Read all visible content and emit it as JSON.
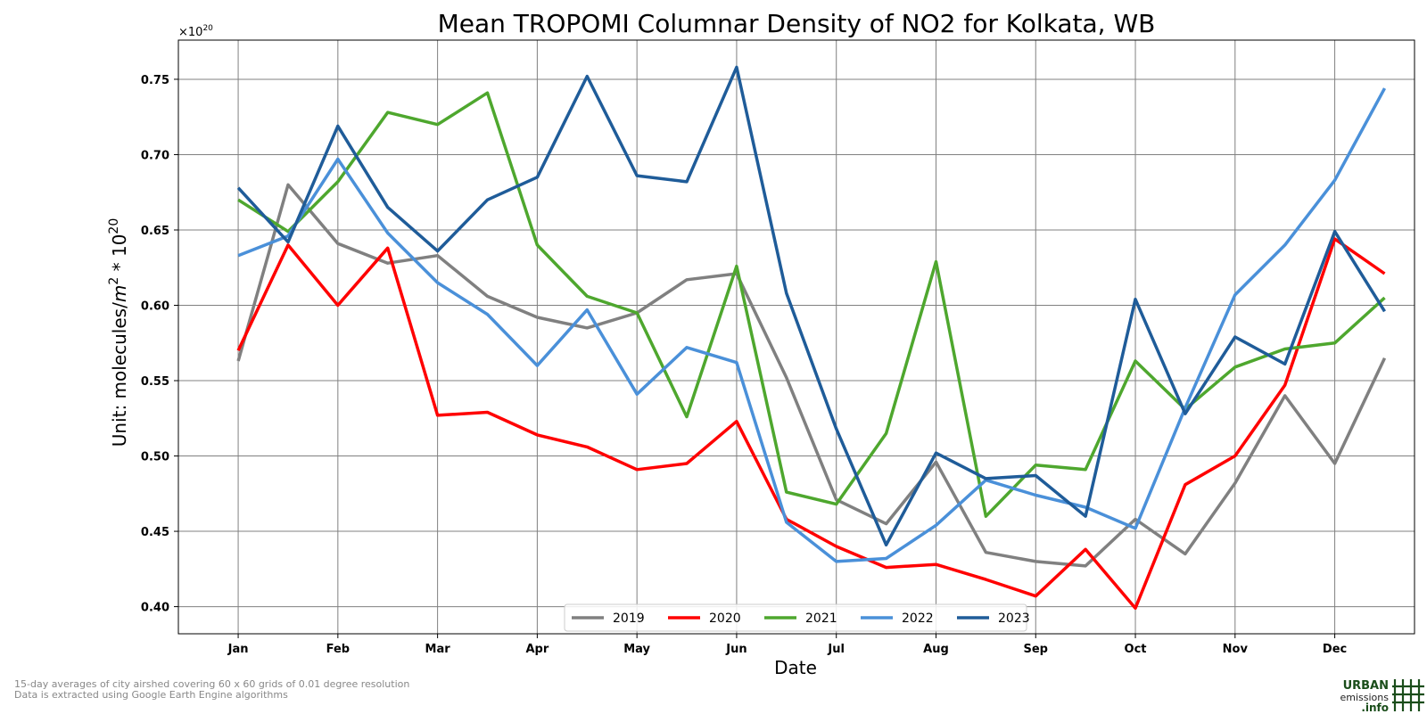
{
  "chart_data": {
    "type": "line",
    "title": "Mean TROPOMI Columnar Density of NO2 for Kolkata, WB",
    "xlabel": "Date",
    "ylabel": "Unit: molecules/m² * 10²⁰",
    "ylabel_base": "Unit: molecules/",
    "ylabel_unit_m": "m",
    "ylabel_exp_2": "2",
    "ylabel_mid": " * 10",
    "ylabel_exp_20": "20",
    "offset_text": "×10",
    "offset_exp": "20",
    "x_tick_labels": [
      "Jan",
      "Feb",
      "Mar",
      "Apr",
      "May",
      "Jun",
      "Jul",
      "Aug",
      "Sep",
      "Oct",
      "Nov",
      "Dec"
    ],
    "y_ticks": [
      0.4,
      0.45,
      0.5,
      0.55,
      0.6,
      0.65,
      0.7,
      0.75
    ],
    "y_tick_labels": [
      "0.40",
      "0.45",
      "0.50",
      "0.55",
      "0.60",
      "0.65",
      "0.70",
      "0.75"
    ],
    "ylim": [
      0.382,
      0.776
    ],
    "x_period_labels": [
      "Jan 1",
      "Jan 16",
      "Feb 1",
      "Feb 16",
      "Mar 1",
      "Mar 16",
      "Apr 1",
      "Apr 16",
      "May 1",
      "May 16",
      "Jun 1",
      "Jun 16",
      "Jul 1",
      "Jul 16",
      "Aug 1",
      "Aug 16",
      "Sep 1",
      "Sep 16",
      "Oct 1",
      "Oct 16",
      "Nov 1",
      "Nov 16",
      "Dec 1",
      "Dec 16"
    ],
    "grid": true,
    "legend_position": "bottom-center",
    "series": [
      {
        "name": "2019",
        "color": "#808080",
        "values": [
          0.563,
          0.68,
          0.641,
          0.628,
          0.633,
          0.606,
          0.592,
          0.585,
          0.595,
          0.617,
          0.621,
          0.552,
          0.471,
          0.455,
          0.496,
          0.436,
          0.43,
          0.427,
          0.458,
          0.435,
          0.482,
          0.54,
          0.495,
          0.565
        ]
      },
      {
        "name": "2020",
        "color": "#ff0000",
        "values": [
          0.57,
          0.64,
          0.6,
          0.638,
          0.527,
          0.529,
          0.514,
          0.506,
          0.491,
          0.495,
          0.523,
          0.458,
          0.44,
          0.426,
          0.428,
          0.418,
          0.407,
          0.438,
          0.399,
          0.481,
          0.5,
          0.547,
          0.644,
          0.621
        ]
      },
      {
        "name": "2021",
        "color": "#4ea72e",
        "values": [
          0.67,
          0.649,
          0.682,
          0.728,
          0.72,
          0.741,
          0.64,
          0.606,
          0.595,
          0.526,
          0.626,
          0.476,
          0.468,
          0.515,
          0.629,
          0.46,
          0.494,
          0.491,
          0.563,
          0.531,
          0.559,
          0.571,
          0.575,
          0.605
        ]
      },
      {
        "name": "2022",
        "color": "#4a90d9",
        "values": [
          0.633,
          0.646,
          0.697,
          0.648,
          0.615,
          0.594,
          0.56,
          0.597,
          0.541,
          0.572,
          0.562,
          0.456,
          0.43,
          0.432,
          0.454,
          0.484,
          0.474,
          0.466,
          0.452,
          0.532,
          0.607,
          0.64,
          0.683,
          0.744
        ]
      },
      {
        "name": "2023",
        "color": "#1f5c99",
        "values": [
          0.678,
          0.642,
          0.719,
          0.665,
          0.636,
          0.67,
          0.685,
          0.752,
          0.686,
          0.682,
          0.758,
          0.608,
          0.518,
          0.441,
          0.502,
          0.485,
          0.487,
          0.46,
          0.604,
          0.528,
          0.579,
          0.561,
          0.649,
          0.596
        ]
      }
    ]
  },
  "footnotes": {
    "line1": "15-day averages of city airshed covering 60 x 60 grids of 0.01 degree resolution",
    "line2": "Data is extracted using Google Earth Engine algorithms"
  },
  "logo": {
    "line1": "URBAN",
    "line2": "emissions",
    "line3": ".info",
    "icon_name": "grid-hash-logo-icon",
    "color": "#1a4d1a"
  }
}
